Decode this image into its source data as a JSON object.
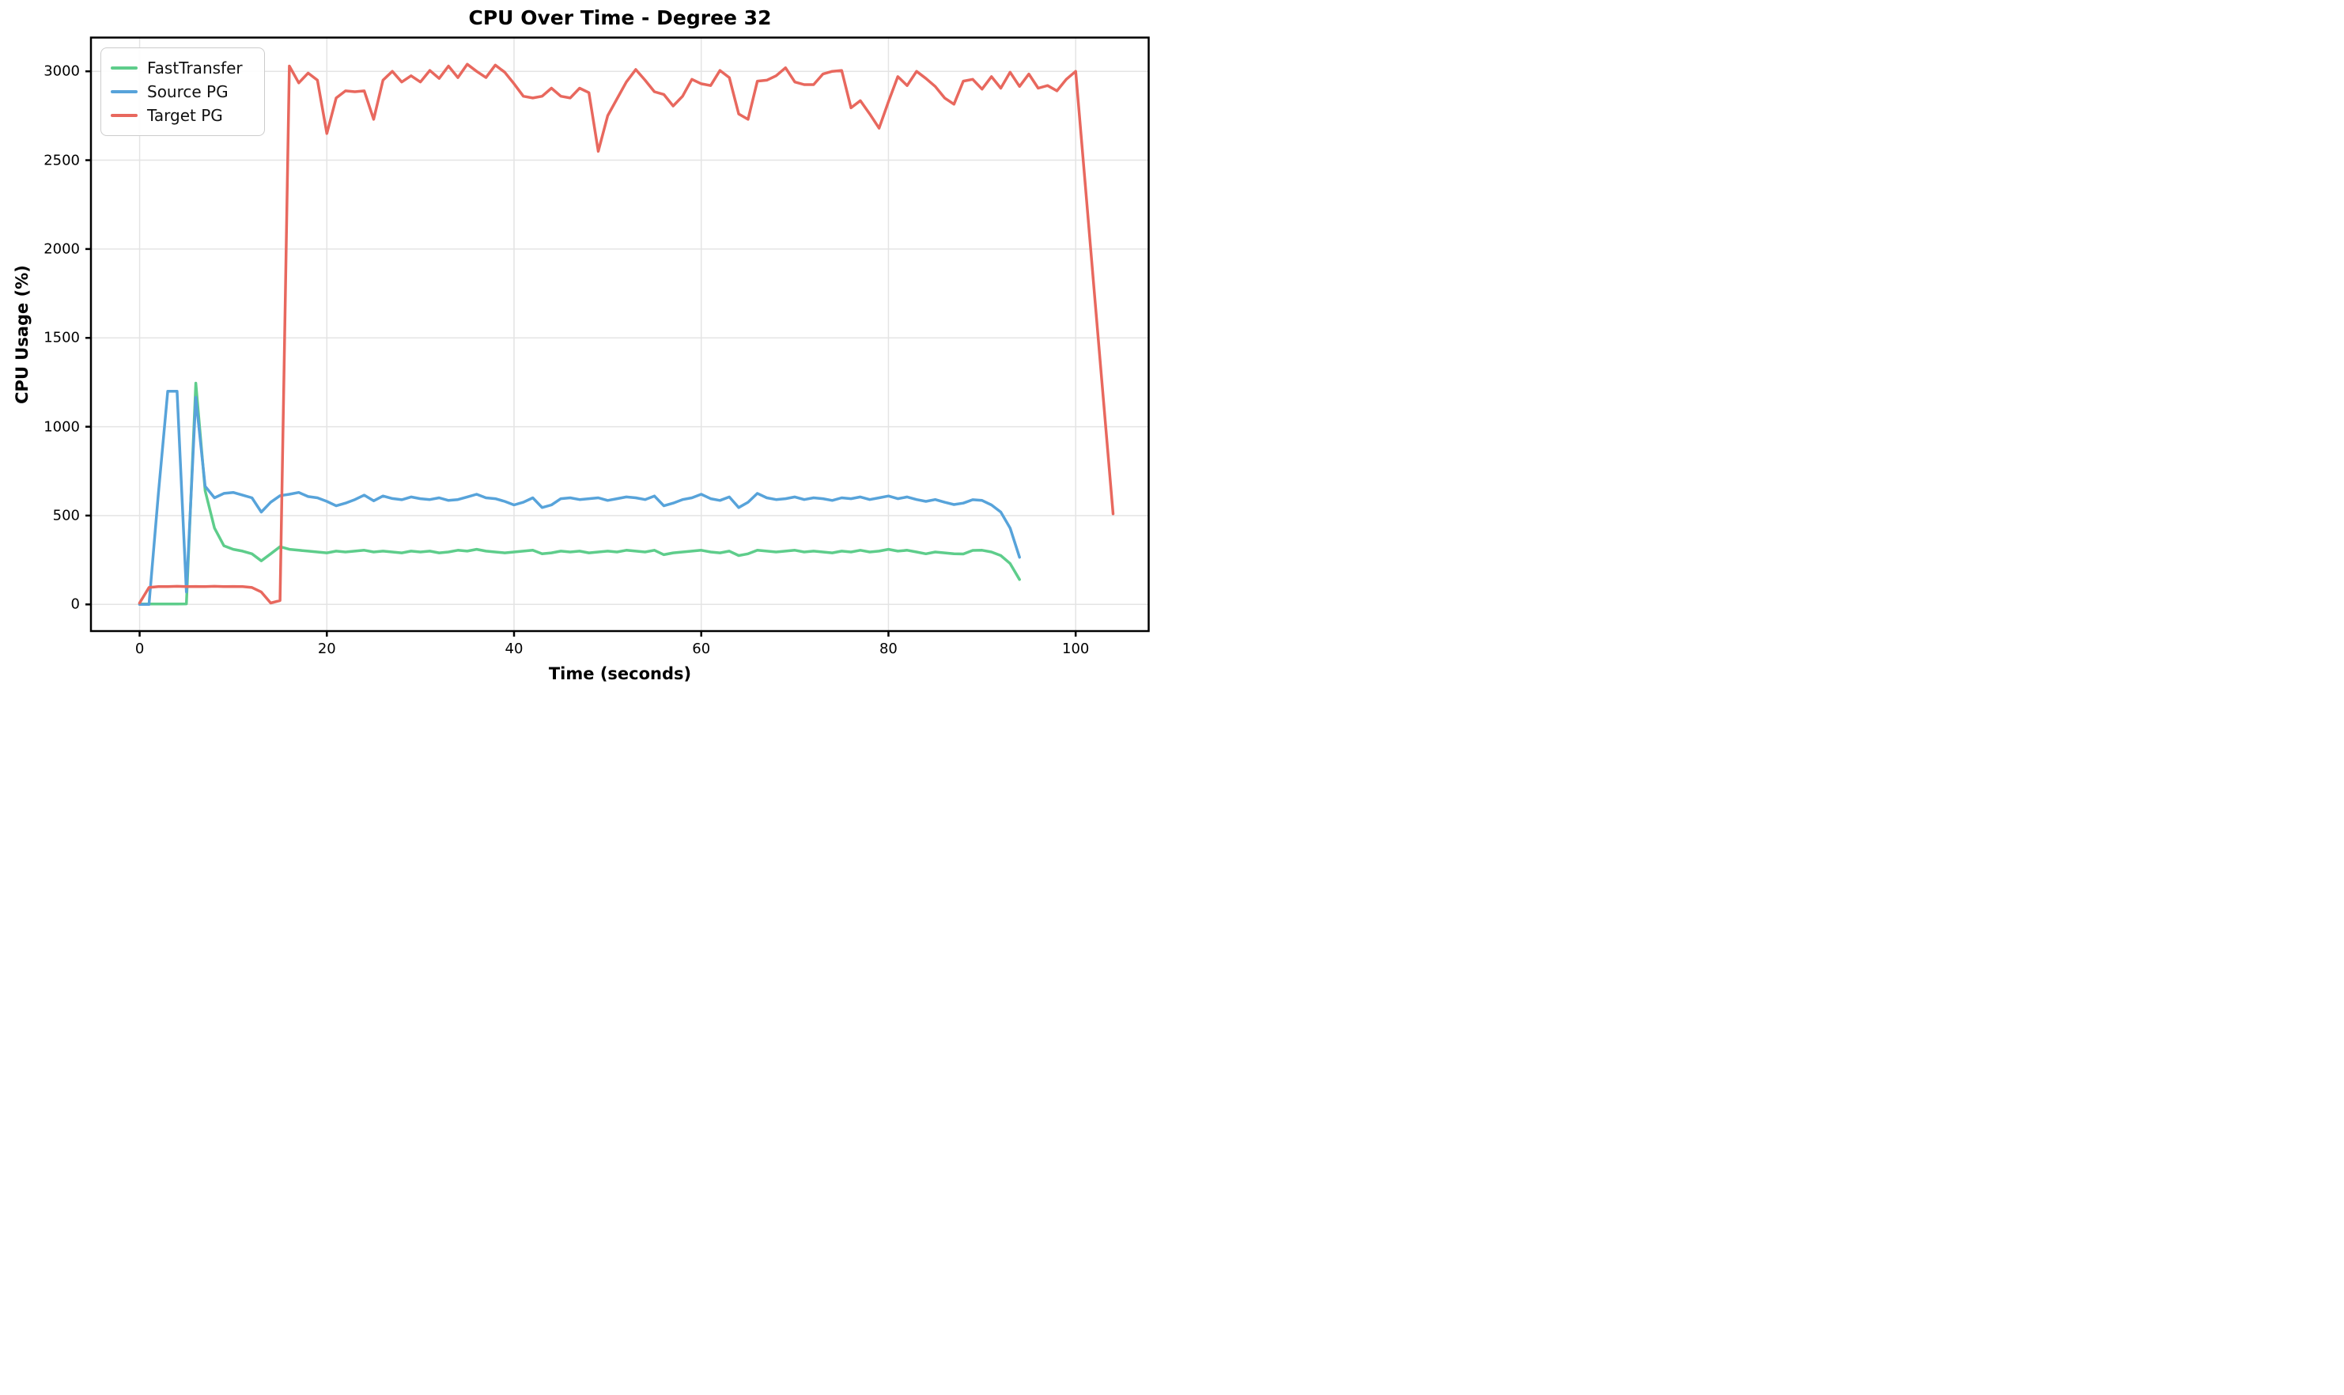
{
  "title": "CPU Over Time - Degree 32",
  "xlabel": "Time (seconds)",
  "ylabel": "CPU Usage (%)",
  "colors": {
    "fasttransfer": "#5ecd8b",
    "source_pg": "#57a3da",
    "target_pg": "#e8685e",
    "grid": "#e4e4e4",
    "spine": "#000000",
    "background": "#ffffff"
  },
  "legend": {
    "position": "upper left",
    "items": [
      {
        "label": "FastTransfer",
        "color": "#5ecd8b"
      },
      {
        "label": "Source PG",
        "color": "#57a3da"
      },
      {
        "label": "Target PG",
        "color": "#e8685e"
      }
    ]
  },
  "chart_data": {
    "type": "line",
    "title": "CPU Over Time - Degree 32",
    "xlabel": "Time (seconds)",
    "ylabel": "CPU Usage (%)",
    "xlim": [
      -5.2,
      107.8
    ],
    "ylim": [
      -150,
      3190
    ],
    "x_ticks": [
      0,
      20,
      40,
      60,
      80,
      100
    ],
    "y_ticks": [
      0,
      500,
      1000,
      1500,
      2000,
      2500,
      3000
    ],
    "grid": true,
    "legend_position": "upper left",
    "series": [
      {
        "name": "FastTransfer",
        "color": "#5ecd8b",
        "x_start": 0,
        "x_step": 1,
        "values": [
          2,
          2,
          2,
          2,
          2,
          3,
          1245,
          640,
          430,
          330,
          310,
          300,
          285,
          245,
          285,
          325,
          310,
          305,
          300,
          295,
          290,
          300,
          295,
          300,
          305,
          295,
          300,
          295,
          290,
          300,
          295,
          300,
          290,
          295,
          305,
          300,
          310,
          300,
          295,
          290,
          295,
          300,
          305,
          285,
          290,
          300,
          295,
          300,
          290,
          295,
          300,
          295,
          305,
          300,
          295,
          305,
          280,
          290,
          295,
          300,
          305,
          295,
          290,
          300,
          275,
          285,
          305,
          300,
          295,
          300,
          305,
          295,
          300,
          295,
          290,
          300,
          295,
          305,
          295,
          300,
          310,
          300,
          305,
          295,
          285,
          295,
          290,
          285,
          284,
          304,
          305,
          295,
          275,
          230,
          140
        ]
      },
      {
        "name": "Source PG",
        "color": "#57a3da",
        "x_start": 0,
        "x_step": 1,
        "values": [
          0,
          0,
          620,
          1200,
          1200,
          70,
          1165,
          665,
          600,
          625,
          630,
          615,
          600,
          520,
          575,
          612,
          620,
          630,
          607,
          600,
          580,
          555,
          570,
          590,
          615,
          583,
          610,
          596,
          589,
          605,
          595,
          590,
          600,
          585,
          590,
          605,
          620,
          600,
          595,
          580,
          560,
          575,
          600,
          545,
          560,
          595,
          600,
          590,
          595,
          600,
          585,
          595,
          605,
          600,
          590,
          610,
          555,
          570,
          590,
          600,
          620,
          595,
          585,
          605,
          545,
          575,
          625,
          600,
          590,
          595,
          605,
          590,
          600,
          595,
          585,
          600,
          595,
          605,
          590,
          600,
          610,
          595,
          605,
          590,
          580,
          590,
          575,
          562,
          570,
          589,
          585,
          560,
          520,
          430,
          265
        ]
      },
      {
        "name": "Target PG",
        "color": "#e8685e",
        "x_start": 0,
        "x_step": 1,
        "values": [
          8,
          95,
          100,
          100,
          102,
          100,
          101,
          100,
          102,
          100,
          101,
          100,
          95,
          70,
          8,
          22,
          3030,
          2935,
          2990,
          2950,
          2650,
          2850,
          2890,
          2885,
          2890,
          2730,
          2950,
          3000,
          2940,
          2975,
          2940,
          3005,
          2960,
          3030,
          2965,
          3040,
          3000,
          2965,
          3035,
          2995,
          2930,
          2860,
          2850,
          2860,
          2905,
          2860,
          2850,
          2905,
          2880,
          2550,
          2750,
          2845,
          2940,
          3010,
          2950,
          2885,
          2870,
          2805,
          2860,
          2955,
          2930,
          2920,
          3005,
          2965,
          2760,
          2730,
          2945,
          2950,
          2975,
          3020,
          2940,
          2925,
          2925,
          2985,
          3000,
          3005,
          2795,
          2835,
          2760,
          2680,
          2830,
          2970,
          2920,
          3000,
          2960,
          2915,
          2850,
          2815,
          2945,
          2955,
          2900,
          2970,
          2905,
          2995,
          2915,
          2985,
          2905,
          2920,
          2890,
          2955,
          3000,
          2380,
          1755,
          1130,
          510
        ]
      }
    ]
  }
}
